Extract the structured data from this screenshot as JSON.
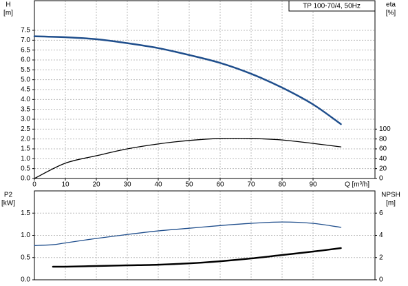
{
  "chart_data": [
    {
      "type": "line",
      "annotation": "TP 100-70/4, 50Hz",
      "ylabel": "H",
      "yunit": "[m]",
      "y2label": "eta",
      "y2unit": "[%]",
      "xlabel": "Q [m³/h]",
      "x": [
        0,
        10,
        20,
        30,
        40,
        50,
        60,
        70,
        80,
        90,
        99
      ],
      "xlim": [
        0,
        110
      ],
      "xticks": [
        0,
        10,
        20,
        30,
        40,
        50,
        60,
        70,
        80,
        90
      ],
      "ylim": [
        0,
        9
      ],
      "yticks": [
        {
          "value": 0,
          "label": "0.0"
        },
        0.5,
        {
          "value": 1,
          "label": "1.0"
        },
        1.5,
        {
          "value": 2,
          "label": "2.0"
        },
        2.5,
        {
          "value": 3,
          "label": "3.0"
        },
        3.5,
        {
          "value": 4,
          "label": "4.0"
        },
        4.5,
        {
          "value": 5,
          "label": "5.0"
        },
        5.5,
        {
          "value": 6,
          "label": "6.0"
        },
        6.5,
        {
          "value": 7,
          "label": "7.0"
        },
        7.5
      ],
      "y2lim": [
        0,
        360
      ],
      "y2ticks": [
        0,
        20,
        40,
        60,
        80,
        100
      ],
      "grid": true,
      "series": [
        {
          "color": "#1f4e8c",
          "width": 2.5,
          "values": [
            7.2,
            7.15,
            7.05,
            6.85,
            6.6,
            6.25,
            5.85,
            5.3,
            4.6,
            3.75,
            2.75
          ]
        },
        {
          "color": "#000000",
          "width": 1.3,
          "axis": "y2",
          "values": [
            0,
            31,
            46,
            60,
            70,
            77,
            81,
            81,
            78,
            71,
            64
          ]
        }
      ]
    },
    {
      "type": "line",
      "ylabel": "P2",
      "yunit": "[kW]",
      "y2label": "NPSH",
      "y2unit": "[m]",
      "x": [
        0,
        6,
        10,
        20,
        30,
        40,
        50,
        60,
        70,
        80,
        90,
        99
      ],
      "xlim": [
        0,
        110
      ],
      "ylim": [
        0,
        2
      ],
      "yticks": [
        {
          "value": 0,
          "label": "0.0"
        },
        0.5,
        {
          "value": 1,
          "label": "1.0"
        },
        1.5
      ],
      "y2lim": [
        0,
        8
      ],
      "y2ticks": [
        0,
        2,
        4,
        6
      ],
      "grid": true,
      "series": [
        {
          "color": "#1f4e8c",
          "width": 1.3,
          "values": [
            0.77,
            0.79,
            0.83,
            0.93,
            1.02,
            1.1,
            1.16,
            1.22,
            1.27,
            1.3,
            1.27,
            1.18
          ]
        },
        {
          "color": "#000000",
          "width": 2.5,
          "axis": "y2",
          "values": [
            null,
            1.18,
            1.18,
            1.24,
            1.3,
            1.36,
            1.48,
            1.67,
            1.92,
            2.23,
            2.54,
            2.85
          ]
        }
      ]
    }
  ]
}
